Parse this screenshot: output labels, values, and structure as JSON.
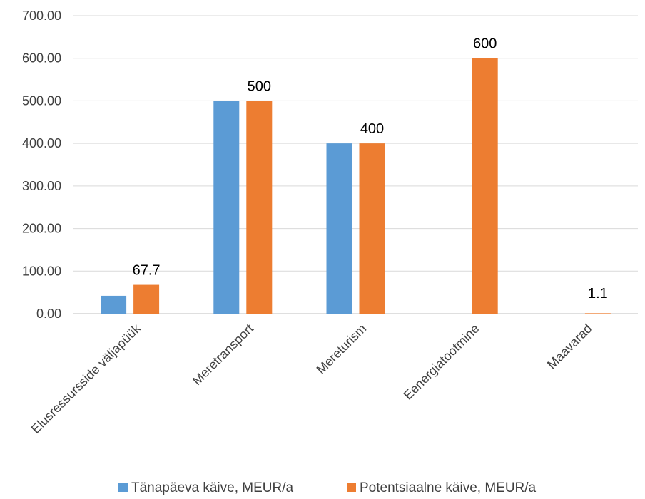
{
  "chart_data": {
    "type": "bar",
    "categories": [
      "Elusressursside väljapüük",
      "Meretransport",
      "Mereturism",
      "Eenergiatootmine",
      "Maavarad"
    ],
    "series": [
      {
        "name": "Tänapäeva käive, MEUR/a",
        "color": "#5b9bd5",
        "values": [
          42,
          500,
          400,
          null,
          null
        ]
      },
      {
        "name": "Potentsiaalne käive, MEUR/a",
        "color": "#ed7d31",
        "values": [
          67.7,
          500,
          400,
          600,
          1.1
        ]
      }
    ],
    "data_labels": {
      "series": 1,
      "labels": [
        "67.7",
        "500",
        "400",
        "600",
        "1.1"
      ]
    },
    "y_ticks": [
      "0.00",
      "100.00",
      "200.00",
      "300.00",
      "400.00",
      "500.00",
      "600.00",
      "700.00"
    ],
    "ylim": [
      0,
      700
    ],
    "grid": true,
    "legend": "bottom"
  }
}
